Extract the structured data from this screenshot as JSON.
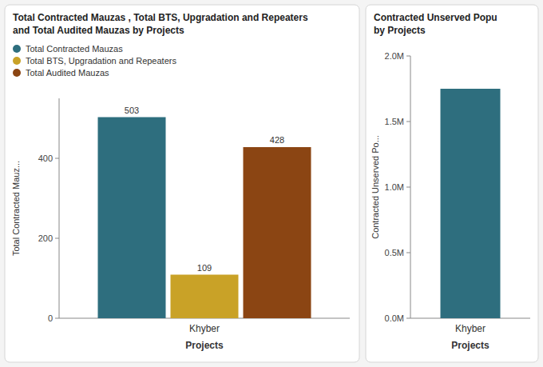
{
  "chart_data": [
    {
      "type": "bar",
      "title": "Total Contracted Mauzas , Total BTS, Upgradation and Repeaters",
      "subtitle": "and Total Audited Mauzas by Projects",
      "categories": [
        "Khyber"
      ],
      "series": [
        {
          "name": "Total Contracted Mauzas",
          "color": "#2e6e7e",
          "values": [
            503
          ]
        },
        {
          "name": "Total BTS, Upgradation and Repeaters",
          "color": "#c9a227",
          "values": [
            109
          ]
        },
        {
          "name": "Total Audited Mauzas",
          "color": "#8b4513",
          "values": [
            428
          ]
        }
      ],
      "x_label": "Projects",
      "y_label": "Total Contracted Mauz...",
      "ylim": [
        0,
        550
      ],
      "yticks": [
        0,
        200,
        400
      ],
      "legend": "top",
      "data_labels": true
    },
    {
      "type": "bar",
      "title": "Contracted Unserved Popu",
      "subtitle": "by Projects",
      "categories": [
        "Khyber"
      ],
      "values": [
        1.75
      ],
      "color": "#2e6e7e",
      "x_label": "Projects",
      "y_label": "Contracted Unserved Po...",
      "ylim": [
        0,
        2.0
      ],
      "yticks": [
        {
          "value": 0.0,
          "label": "0.0M"
        },
        {
          "value": 0.5,
          "label": "0.5M"
        },
        {
          "value": 1.0,
          "label": "1.0M"
        },
        {
          "value": 1.5,
          "label": "1.5M"
        },
        {
          "value": 2.0,
          "label": "2.0M"
        }
      ]
    }
  ]
}
